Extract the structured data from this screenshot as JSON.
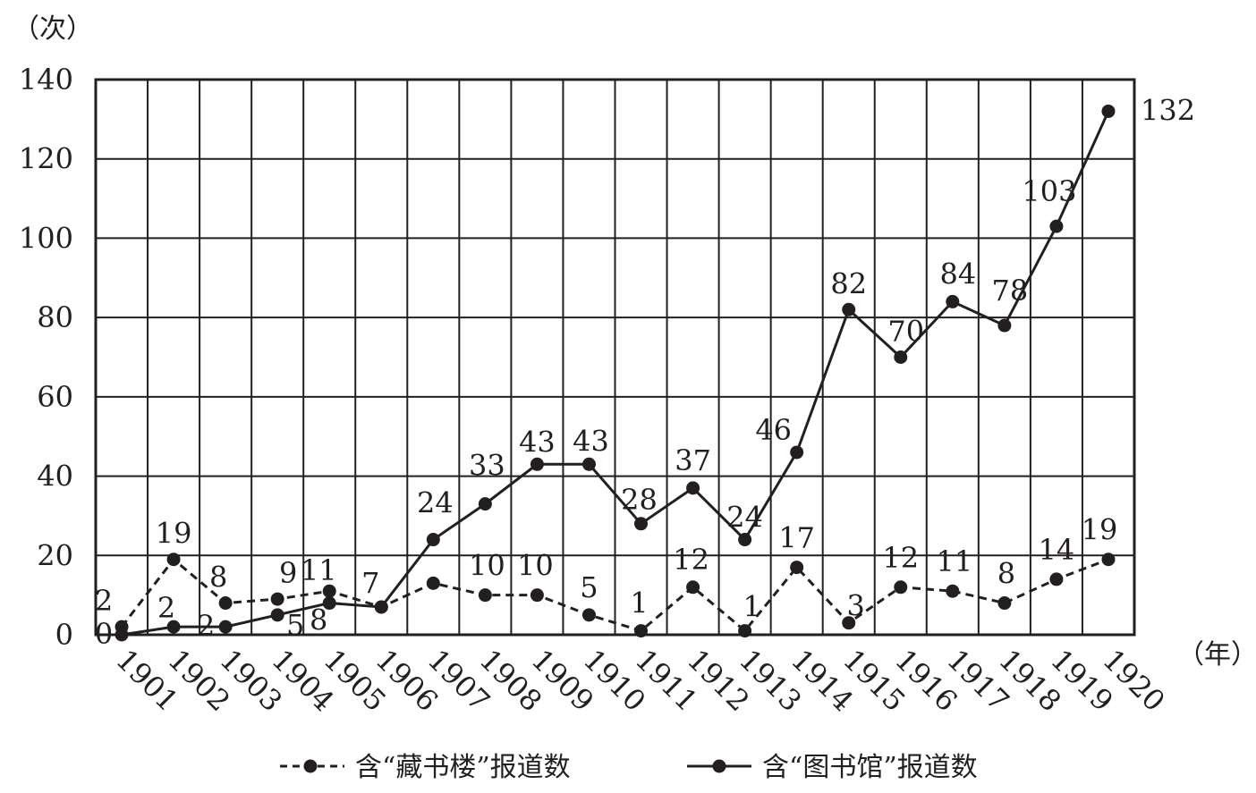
{
  "chart_data": {
    "type": "line",
    "ylabel": "（次）",
    "xlabel": "（年）",
    "ylim": [
      0,
      140
    ],
    "yticks": [
      "0",
      "20",
      "40",
      "60",
      "80",
      "100",
      "120",
      "140"
    ],
    "categories": [
      "1901",
      "1902",
      "1903",
      "1904",
      "1905",
      "1906",
      "1907",
      "1908",
      "1909",
      "1910",
      "1911",
      "1912",
      "1913",
      "1914",
      "1915",
      "1916",
      "1917",
      "1918",
      "1919",
      "1920"
    ],
    "grid": true,
    "legend_position": "bottom",
    "series": [
      {
        "name": "含“藏书楼”报道数",
        "style": "dashed",
        "values": [
          2,
          19,
          8,
          9,
          11,
          7,
          13,
          10,
          10,
          5,
          1,
          12,
          1,
          17,
          3,
          12,
          11,
          8,
          14,
          19
        ],
        "labels": [
          "2",
          "19",
          "8",
          "9",
          "11",
          "7",
          "",
          "10",
          "10",
          "5",
          "1",
          "12",
          "1",
          "17",
          "3",
          "12",
          "11",
          "8",
          "14",
          "19"
        ]
      },
      {
        "name": "含“图书馆”报道数",
        "style": "solid",
        "values": [
          0,
          2,
          2,
          5,
          8,
          7,
          24,
          33,
          43,
          43,
          28,
          37,
          24,
          46,
          82,
          70,
          84,
          78,
          103,
          132
        ],
        "labels": [
          "0",
          "2",
          "2",
          "5",
          "8",
          "",
          "24",
          "33",
          "43",
          "43",
          "28",
          "37",
          "24",
          "46",
          "82",
          "70",
          "84",
          "78",
          "103",
          "132"
        ]
      }
    ]
  }
}
